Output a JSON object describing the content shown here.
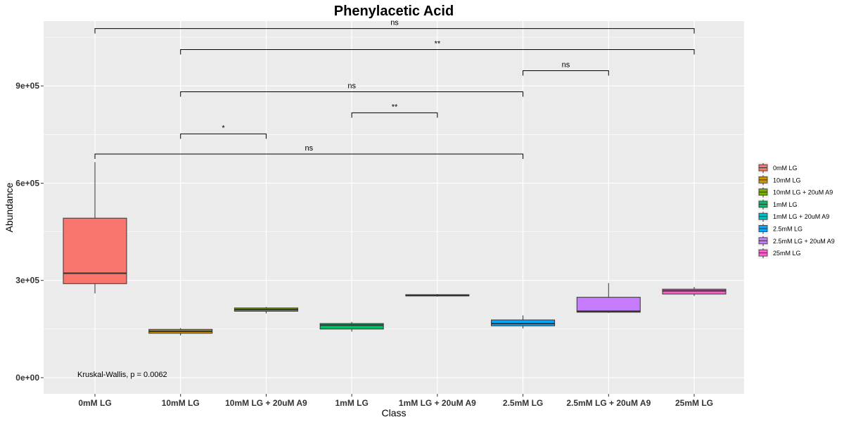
{
  "chart_data": {
    "type": "box",
    "title": "Phenylacetic Acid",
    "xlabel": "Class",
    "ylabel": "Abundance",
    "ylim": [
      -50000,
      1100000
    ],
    "yticks": [
      0,
      300000,
      600000,
      900000
    ],
    "ytick_labels": [
      "0e+00",
      "3e+05",
      "6e+05",
      "9e+05"
    ],
    "grid": true,
    "legend_position": "right",
    "categories": [
      "0mM LG",
      "10mM LG",
      "10mM LG + 20uM A9",
      "1mM LG",
      "1mM LG + 20uM A9",
      "2.5mM LG",
      "2.5mM LG + 20uM A9",
      "25mM LG"
    ],
    "series": [
      {
        "name": "0mM LG",
        "color": "#F8766D",
        "min": 260000,
        "q1": 290000,
        "median": 322000,
        "q3": 492000,
        "max": 665000
      },
      {
        "name": "10mM LG",
        "color": "#CD9600",
        "min": 130000,
        "q1": 137000,
        "median": 143000,
        "q3": 149000,
        "max": 153000
      },
      {
        "name": "10mM LG + 20uM A9",
        "color": "#7CAE00",
        "min": 198000,
        "q1": 205000,
        "median": 210000,
        "q3": 215000,
        "max": 218000
      },
      {
        "name": "1mM LG",
        "color": "#00BE67",
        "min": 142000,
        "q1": 150000,
        "median": 162000,
        "q3": 167000,
        "max": 172000
      },
      {
        "name": "1mM LG + 20uM A9",
        "color": "#00BFC4",
        "min": 250000,
        "q1": 252000,
        "median": 254000,
        "q3": 256000,
        "max": 258000
      },
      {
        "name": "2.5mM LG",
        "color": "#00A9FF",
        "min": 152000,
        "q1": 160000,
        "median": 167000,
        "q3": 178000,
        "max": 192000
      },
      {
        "name": "2.5mM LG + 20uM A9",
        "color": "#C77CFF",
        "min": 200000,
        "q1": 202000,
        "median": 205000,
        "q3": 248000,
        "max": 292000
      },
      {
        "name": "25mM LG",
        "color": "#FF61CC",
        "min": 252000,
        "q1": 258000,
        "median": 268000,
        "q3": 273000,
        "max": 280000
      }
    ],
    "comparisons": [
      {
        "from": 0,
        "to": 7,
        "y": 1077000,
        "label": "ns"
      },
      {
        "from": 1,
        "to": 7,
        "y": 1012000,
        "label": "**"
      },
      {
        "from": 5,
        "to": 6,
        "y": 947000,
        "label": "ns"
      },
      {
        "from": 1,
        "to": 5,
        "y": 882000,
        "label": "ns"
      },
      {
        "from": 3,
        "to": 4,
        "y": 817000,
        "label": "**"
      },
      {
        "from": 1,
        "to": 2,
        "y": 752000,
        "label": "*"
      },
      {
        "from": 0,
        "to": 5,
        "y": 690000,
        "label": "ns"
      }
    ],
    "annotation": "Kruskal-Wallis, p = 0.0062"
  }
}
